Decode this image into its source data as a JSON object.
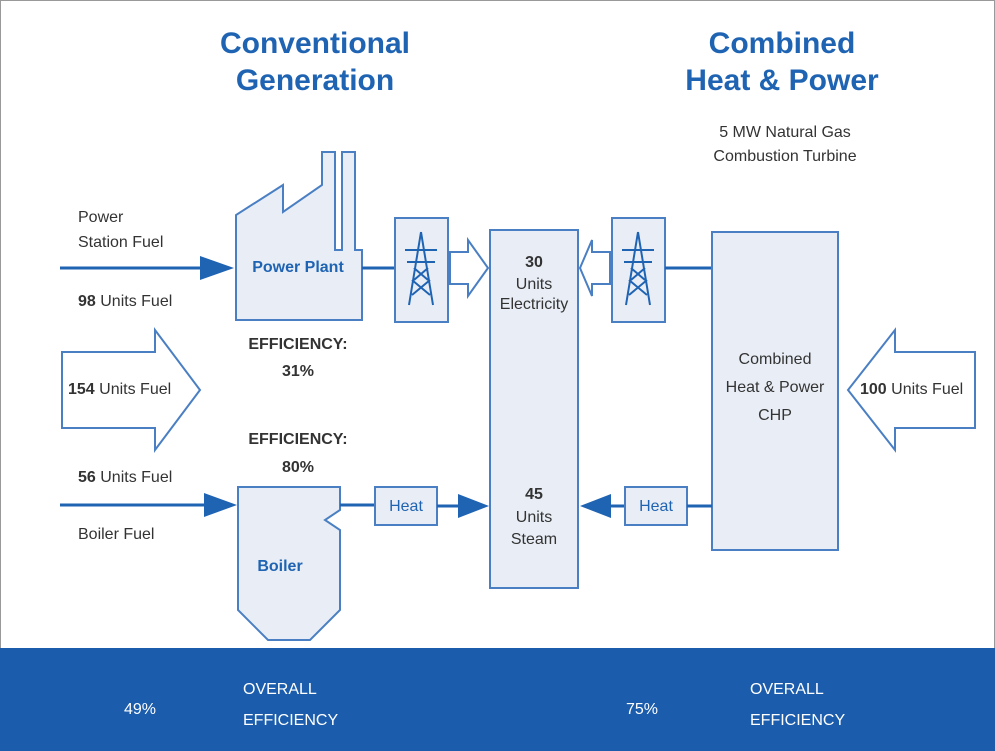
{
  "conventional": {
    "title": [
      "Conventional",
      "Generation"
    ],
    "power_station_fuel": {
      "label": [
        "Power",
        "Station Fuel"
      ],
      "amount": "98",
      "unit": "Units Fuel"
    },
    "combined_fuel": {
      "amount": "154",
      "unit": "Units Fuel"
    },
    "boiler_fuel": {
      "amount": "56",
      "unit": "Units Fuel",
      "label": "Boiler Fuel"
    },
    "power_plant": {
      "label": "Power Plant",
      "efficiency_label": "EFFICIENCY:",
      "efficiency": "31%"
    },
    "boiler": {
      "label": "Boiler",
      "efficiency_label": "EFFICIENCY:",
      "efficiency": "80%"
    },
    "heat": "Heat",
    "overall": {
      "value": "49%",
      "label": [
        "OVERALL",
        "EFFICIENCY"
      ]
    }
  },
  "outputs": {
    "electricity": [
      "30",
      "Units",
      "Electricity"
    ],
    "steam": [
      "45",
      "Units",
      "Steam"
    ]
  },
  "chp": {
    "title": [
      "Combined",
      "Heat & Power"
    ],
    "subtitle": [
      "5 MW Natural Gas",
      "Combustion Turbine"
    ],
    "unit": [
      "Combined",
      "Heat & Power",
      "CHP"
    ],
    "fuel": {
      "amount": "100",
      "unit": "Units Fuel"
    },
    "heat": "Heat",
    "overall": {
      "value": "75%",
      "label": [
        "OVERALL",
        "EFFICIENCY"
      ]
    }
  }
}
